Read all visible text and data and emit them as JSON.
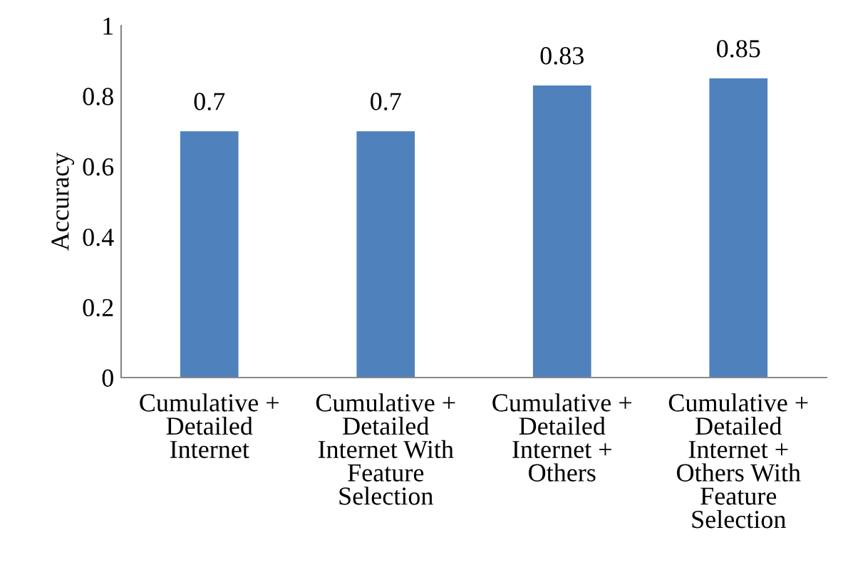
{
  "chart_data": {
    "type": "bar",
    "ylabel": "Accuracy",
    "categories": [
      "Cumulative +\nDetailed\nInternet",
      "Cumulative +\nDetailed\nInternet With\nFeature\nSelection",
      "Cumulative +\nDetailed\nInternet +\nOthers",
      "Cumulative +\nDetailed\nInternet +\nOthers With\nFeature\nSelection"
    ],
    "values": [
      0.7,
      0.7,
      0.83,
      0.85
    ],
    "color": "#4f81bd",
    "ylim": [
      0,
      1
    ],
    "yticks": [
      0,
      0.2,
      0.4,
      0.6,
      0.8,
      1
    ],
    "data_labels": true,
    "grid": false
  }
}
